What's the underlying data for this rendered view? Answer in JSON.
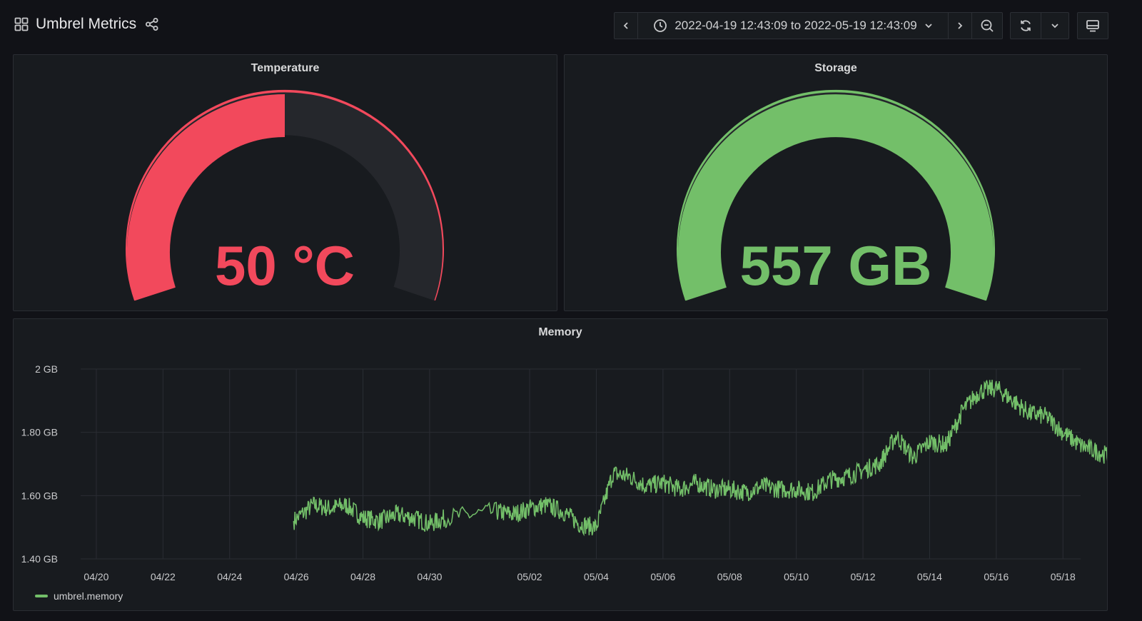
{
  "dashboard": {
    "title": "Umbrel Metrics",
    "icons": {
      "dashboard": "grid-icon",
      "share": "share-icon"
    }
  },
  "time_picker": {
    "range_label": "2022-04-19 12:43:09 to 2022-05-19 12:43:09",
    "icons": [
      "chevron-left-icon",
      "clock-icon",
      "chevron-down-icon",
      "chevron-right-icon",
      "zoom-out-icon",
      "refresh-icon",
      "chevron-down-icon",
      "tv-mode-icon"
    ]
  },
  "panels": {
    "temperature": {
      "title": "Temperature",
      "value": "50 °C",
      "fraction": 0.5,
      "color": "#f2495c"
    },
    "storage": {
      "title": "Storage",
      "value": "557 GB",
      "fraction": 1.0,
      "color": "#73bf69"
    },
    "memory": {
      "title": "Memory",
      "legend": "umbrel.memory",
      "color": "#73bf69"
    }
  },
  "chart_data": {
    "type": "line",
    "title": "Memory",
    "xlabel": "",
    "ylabel": "",
    "x_tick_labels": [
      "04/20",
      "04/22",
      "04/24",
      "04/26",
      "04/28",
      "04/30",
      "05/02",
      "05/04",
      "05/06",
      "05/08",
      "05/10",
      "05/12",
      "05/14",
      "05/16",
      "05/18"
    ],
    "y_tick_labels": [
      "1.40 GB",
      "1.60 GB",
      "1.80 GB",
      "2 GB"
    ],
    "ylim": [
      1.4,
      2.0
    ],
    "grid": true,
    "legend_position": "bottom-left",
    "series": [
      {
        "name": "umbrel.memory",
        "x": [
          "04/25 22:00",
          "04/26 12:00",
          "04/27 00:00",
          "04/27 12:00",
          "04/28 00:00",
          "04/28 12:00",
          "04/29 00:00",
          "04/29 12:00",
          "04/30 00:00",
          "04/30 12:00",
          "05/01 00:00",
          "05/01 12:00",
          "05/02 00:00",
          "05/02 12:00",
          "05/03 00:00",
          "05/03 12:00",
          "05/04 00:00",
          "05/04 12:00",
          "05/05 00:00",
          "05/05 12:00",
          "05/06 00:00",
          "05/06 12:00",
          "05/07 00:00",
          "05/07 12:00",
          "05/08 00:00",
          "05/08 12:00",
          "05/09 00:00",
          "05/09 12:00",
          "05/10 00:00",
          "05/10 12:00",
          "05/11 00:00",
          "05/11 12:00",
          "05/12 00:00",
          "05/12 12:00",
          "05/13 00:00",
          "05/13 12:00",
          "05/14 00:00",
          "05/14 12:00",
          "05/15 00:00",
          "05/15 12:00",
          "05/16 00:00",
          "05/16 12:00",
          "05/17 00:00",
          "05/17 12:00",
          "05/18 00:00",
          "05/18 12:00",
          "05/19 00:00",
          "05/19 12:00"
        ],
        "values": [
          1.52,
          1.57,
          1.56,
          1.57,
          1.53,
          1.52,
          1.54,
          1.53,
          1.51,
          1.53,
          1.55,
          1.54,
          1.56,
          1.57,
          1.55,
          1.51,
          1.5,
          1.67,
          1.66,
          1.63,
          1.64,
          1.62,
          1.64,
          1.62,
          1.62,
          1.61,
          1.63,
          1.62,
          1.62,
          1.61,
          1.65,
          1.66,
          1.68,
          1.7,
          1.79,
          1.72,
          1.77,
          1.76,
          1.87,
          1.93,
          1.94,
          1.9,
          1.86,
          1.85,
          1.8,
          1.76,
          1.74,
          1.72
        ]
      }
    ]
  }
}
